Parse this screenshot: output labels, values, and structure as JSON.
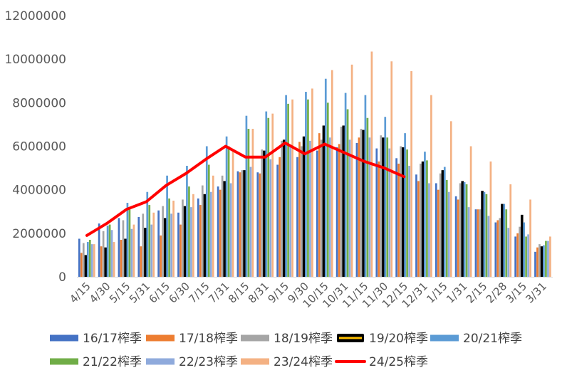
{
  "chart_data": {
    "type": "bar",
    "title": "",
    "xlabel": "",
    "ylabel": "",
    "ylim": [
      0,
      12000000
    ],
    "yticks": [
      "0",
      "2000000",
      "4000000",
      "6000000",
      "8000000",
      "10000000",
      "12000000"
    ],
    "categories": [
      "4/15",
      "4/30",
      "5/15",
      "5/31",
      "6/15",
      "6/30",
      "7/15",
      "7/31",
      "8/15",
      "8/31",
      "9/15",
      "9/30",
      "10/15",
      "10/31",
      "11/15",
      "11/30",
      "12/15",
      "12/31",
      "1/15",
      "1/31",
      "2/15",
      "2/28",
      "3/15",
      "3/31"
    ],
    "series": [
      {
        "name": "16/17榨季",
        "type": "bar",
        "color": "#4472C4",
        "values": [
          1750000,
          2450000,
          2700000,
          2750000,
          3050000,
          2950000,
          3600000,
          4150000,
          4850000,
          4800000,
          5150000,
          5500000,
          5800000,
          5950000,
          6150000,
          5900000,
          5450000,
          4700000,
          4300000,
          3700000,
          3100000,
          2500000,
          1850000,
          1150000
        ]
      },
      {
        "name": "17/18榨季",
        "type": "bar",
        "color": "#ED7D31",
        "values": [
          1100000,
          1400000,
          1700000,
          1400000,
          1900000,
          2400000,
          3300000,
          4000000,
          4800000,
          4750000,
          5500000,
          6200000,
          6600000,
          6100000,
          6400000,
          5300000,
          5200000,
          4400000,
          4000000,
          3550000,
          3100000,
          2600000,
          2000000,
          1350000
        ]
      },
      {
        "name": "18/19榨季",
        "type": "bar",
        "color": "#A5A5A5",
        "values": [
          1550000,
          2100000,
          2600000,
          2900000,
          3250000,
          3550000,
          4200000,
          4650000,
          4900000,
          5850000,
          6250000,
          6000000,
          6300000,
          6900000,
          6800000,
          6500000,
          6000000,
          5200000,
          4750000,
          4300000,
          3100000,
          2700000,
          2300000,
          1500000
        ]
      },
      {
        "name": "19/20榨季",
        "type": "bar",
        "color": "#000000",
        "values": [
          1000000,
          1350000,
          1750000,
          2250000,
          2700000,
          3250000,
          3800000,
          4400000,
          4900000,
          5800000,
          6300000,
          6450000,
          6950000,
          6950000,
          6750000,
          6400000,
          5950000,
          5300000,
          4900000,
          4400000,
          3950000,
          3350000,
          2850000,
          1400000
        ]
      },
      {
        "name": "20/21榨季",
        "type": "bar",
        "color": "#5B9BD5",
        "values": [
          1600000,
          2350000,
          3400000,
          3900000,
          4650000,
          5100000,
          6000000,
          6450000,
          7400000,
          7600000,
          8350000,
          8500000,
          9100000,
          8450000,
          8350000,
          7350000,
          6600000,
          5750000,
          5050000,
          4350000,
          3900000,
          3350000,
          2500000,
          1450000
        ]
      },
      {
        "name": "21/22榨季",
        "type": "bar",
        "color": "#70AD47",
        "values": [
          1700000,
          2400000,
          3100000,
          3300000,
          3600000,
          4150000,
          5150000,
          6000000,
          6800000,
          7300000,
          7950000,
          8150000,
          8000000,
          7700000,
          7300000,
          6400000,
          5850000,
          5350000,
          4450000,
          4250000,
          3800000,
          3100000,
          1850000,
          1650000
        ]
      },
      {
        "name": "22/23榨季",
        "type": "bar",
        "color": "#8FAADC",
        "values": [
          1500000,
          2150000,
          2200000,
          2400000,
          2900000,
          3200000,
          3900000,
          4300000,
          5050000,
          5400000,
          6050000,
          6250000,
          6400000,
          6300000,
          6400000,
          5900000,
          5100000,
          4300000,
          3900000,
          3200000,
          2800000,
          2250000,
          1950000,
          1650000
        ]
      },
      {
        "name": "23/24榨季",
        "type": "bar",
        "color": "#F4B183",
        "values": [
          1500000,
          1600000,
          2400000,
          2950000,
          3500000,
          3800000,
          4650000,
          5800000,
          6800000,
          7500000,
          8150000,
          8650000,
          9500000,
          9750000,
          10350000,
          9900000,
          9450000,
          8350000,
          7150000,
          6000000,
          5300000,
          4250000,
          3550000,
          1850000
        ]
      },
      {
        "name": "24/25榨季",
        "type": "line",
        "color": "#FF0000",
        "values": [
          1900000,
          2450000,
          3100000,
          3450000,
          4200000,
          4750000,
          5400000,
          6000000,
          5500000,
          5500000,
          6150000,
          5650000,
          6100000,
          5700000,
          5300000,
          5000000,
          4600000,
          null,
          null,
          null,
          null,
          null,
          null,
          null
        ]
      }
    ],
    "legend_position": "bottom",
    "grid": false
  }
}
